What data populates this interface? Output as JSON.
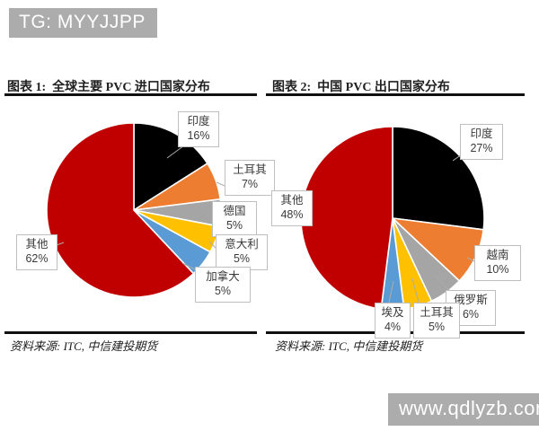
{
  "watermark_top": {
    "text": "TG: MYYJJPP",
    "bg_color": "#acacac",
    "text_color": "#ffffff"
  },
  "watermark_bottom": {
    "text": "www.qdlyzb.com",
    "bg_color": "#acacac",
    "text_color": "#ffffff"
  },
  "chart_data": [
    {
      "type": "pie",
      "title": "图表 1:  全球主要 PVC 进口国家分布",
      "source": "资料来源: ITC, 中信建投期货",
      "legend_position": "callout-labels",
      "direction": "clockwise",
      "start_angle_deg": 0,
      "categories": [
        "印度",
        "土耳其",
        "德国",
        "意大利",
        "加拿大",
        "其他"
      ],
      "values": [
        16,
        7,
        5,
        5,
        5,
        62
      ],
      "slices": [
        {
          "label": "印度",
          "pct": "16%",
          "value": 16,
          "color": "#000000"
        },
        {
          "label": "土耳其",
          "pct": "7%",
          "value": 7,
          "color": "#ED7D31"
        },
        {
          "label": "德国",
          "pct": "5%",
          "value": 5,
          "color": "#A5A5A5"
        },
        {
          "label": "意大利",
          "pct": "5%",
          "value": 5,
          "color": "#FFC000"
        },
        {
          "label": "加拿大",
          "pct": "5%",
          "value": 5,
          "color": "#5B9BD5"
        },
        {
          "label": "其他",
          "pct": "62%",
          "value": 62,
          "color": "#C00000"
        }
      ]
    },
    {
      "type": "pie",
      "title": "图表 2:  中国 PVC 出口国家分布",
      "source": "资料来源: ITC, 中信建投期货",
      "legend_position": "callout-labels",
      "direction": "clockwise",
      "start_angle_deg": 0,
      "categories": [
        "印度",
        "越南",
        "俄罗斯",
        "土耳其",
        "埃及",
        "其他"
      ],
      "values": [
        27,
        10,
        6,
        5,
        4,
        48
      ],
      "slices": [
        {
          "label": "印度",
          "pct": "27%",
          "value": 27,
          "color": "#000000"
        },
        {
          "label": "越南",
          "pct": "10%",
          "value": 10,
          "color": "#ED7D31"
        },
        {
          "label": "俄罗斯",
          "pct": "6%",
          "value": 6,
          "color": "#A5A5A5"
        },
        {
          "label": "土耳其",
          "pct": "5%",
          "value": 5,
          "color": "#FFC000"
        },
        {
          "label": "埃及",
          "pct": "4%",
          "value": 4,
          "color": "#5B9BD5"
        },
        {
          "label": "其他",
          "pct": "48%",
          "value": 48,
          "color": "#C00000"
        }
      ]
    }
  ]
}
